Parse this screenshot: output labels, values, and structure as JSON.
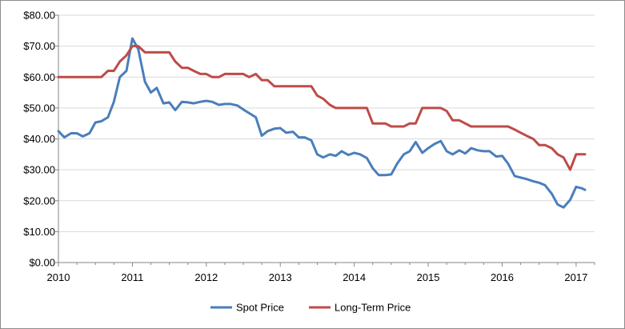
{
  "chart_data": {
    "type": "line",
    "title": "",
    "xlabel": "",
    "ylabel": "",
    "xlim": [
      2010,
      2017.25
    ],
    "ylim": [
      0,
      80
    ],
    "y_ticks": [
      "$0.00",
      "$10.00",
      "$20.00",
      "$30.00",
      "$40.00",
      "$50.00",
      "$60.00",
      "$70.00",
      "$80.00"
    ],
    "x_ticks": [
      "2010",
      "2011",
      "2012",
      "2013",
      "2014",
      "2015",
      "2016",
      "2017"
    ],
    "grid": {
      "horizontal": true,
      "vertical": false
    },
    "legend_position": "bottom",
    "series": [
      {
        "name": "Spot Price",
        "color": "#4a7ebb",
        "points": [
          [
            2010.0,
            42.5
          ],
          [
            2010.08,
            40.5
          ],
          [
            2010.17,
            41.8
          ],
          [
            2010.25,
            41.8
          ],
          [
            2010.33,
            40.8
          ],
          [
            2010.42,
            41.8
          ],
          [
            2010.5,
            45.3
          ],
          [
            2010.58,
            45.7
          ],
          [
            2010.67,
            47.0
          ],
          [
            2010.75,
            52.0
          ],
          [
            2010.83,
            60.0
          ],
          [
            2010.92,
            62.0
          ],
          [
            2011.0,
            72.5
          ],
          [
            2011.08,
            69.0
          ],
          [
            2011.17,
            58.5
          ],
          [
            2011.25,
            55.0
          ],
          [
            2011.33,
            56.5
          ],
          [
            2011.42,
            51.5
          ],
          [
            2011.5,
            51.8
          ],
          [
            2011.58,
            49.3
          ],
          [
            2011.67,
            52.0
          ],
          [
            2011.75,
            51.8
          ],
          [
            2011.83,
            51.5
          ],
          [
            2011.92,
            52.0
          ],
          [
            2012.0,
            52.3
          ],
          [
            2012.08,
            52.0
          ],
          [
            2012.17,
            51.0
          ],
          [
            2012.25,
            51.3
          ],
          [
            2012.33,
            51.3
          ],
          [
            2012.42,
            50.8
          ],
          [
            2012.5,
            49.5
          ],
          [
            2012.58,
            48.3
          ],
          [
            2012.67,
            47.0
          ],
          [
            2012.75,
            41.0
          ],
          [
            2012.83,
            42.5
          ],
          [
            2012.92,
            43.3
          ],
          [
            2013.0,
            43.5
          ],
          [
            2013.08,
            42.0
          ],
          [
            2013.17,
            42.3
          ],
          [
            2013.25,
            40.5
          ],
          [
            2013.33,
            40.5
          ],
          [
            2013.42,
            39.5
          ],
          [
            2013.5,
            35.0
          ],
          [
            2013.58,
            34.0
          ],
          [
            2013.67,
            35.0
          ],
          [
            2013.75,
            34.5
          ],
          [
            2013.83,
            36.0
          ],
          [
            2013.92,
            34.8
          ],
          [
            2014.0,
            35.5
          ],
          [
            2014.08,
            35.0
          ],
          [
            2014.17,
            33.8
          ],
          [
            2014.25,
            30.5
          ],
          [
            2014.33,
            28.3
          ],
          [
            2014.42,
            28.3
          ],
          [
            2014.5,
            28.5
          ],
          [
            2014.58,
            32.0
          ],
          [
            2014.67,
            35.0
          ],
          [
            2014.75,
            36.0
          ],
          [
            2014.83,
            39.0
          ],
          [
            2014.92,
            35.5
          ],
          [
            2015.0,
            37.0
          ],
          [
            2015.08,
            38.3
          ],
          [
            2015.17,
            39.3
          ],
          [
            2015.25,
            36.0
          ],
          [
            2015.33,
            35.0
          ],
          [
            2015.42,
            36.3
          ],
          [
            2015.5,
            35.3
          ],
          [
            2015.58,
            37.0
          ],
          [
            2015.67,
            36.3
          ],
          [
            2015.75,
            36.0
          ],
          [
            2015.83,
            36.0
          ],
          [
            2015.92,
            34.3
          ],
          [
            2016.0,
            34.5
          ],
          [
            2016.08,
            32.0
          ],
          [
            2016.17,
            28.0
          ],
          [
            2016.25,
            27.5
          ],
          [
            2016.33,
            27.0
          ],
          [
            2016.42,
            26.3
          ],
          [
            2016.5,
            25.8
          ],
          [
            2016.58,
            25.0
          ],
          [
            2016.67,
            22.3
          ],
          [
            2016.75,
            18.8
          ],
          [
            2016.83,
            17.8
          ],
          [
            2016.92,
            20.3
          ],
          [
            2017.0,
            24.5
          ],
          [
            2017.08,
            24.0
          ],
          [
            2017.12,
            23.5
          ]
        ]
      },
      {
        "name": "Long-Term Price",
        "color": "#be4b48",
        "points": [
          [
            2010.0,
            60.0
          ],
          [
            2010.58,
            60.0
          ],
          [
            2010.67,
            62.0
          ],
          [
            2010.75,
            62.0
          ],
          [
            2010.83,
            65.0
          ],
          [
            2010.92,
            67.0
          ],
          [
            2011.0,
            70.0
          ],
          [
            2011.08,
            70.0
          ],
          [
            2011.17,
            68.0
          ],
          [
            2011.5,
            68.0
          ],
          [
            2011.58,
            65.0
          ],
          [
            2011.67,
            63.0
          ],
          [
            2011.75,
            63.0
          ],
          [
            2011.83,
            62.0
          ],
          [
            2011.92,
            61.0
          ],
          [
            2012.0,
            61.0
          ],
          [
            2012.08,
            60.0
          ],
          [
            2012.17,
            60.0
          ],
          [
            2012.25,
            61.0
          ],
          [
            2012.5,
            61.0
          ],
          [
            2012.58,
            60.0
          ],
          [
            2012.67,
            61.0
          ],
          [
            2012.75,
            59.0
          ],
          [
            2012.83,
            59.0
          ],
          [
            2012.92,
            57.0
          ],
          [
            2013.42,
            57.0
          ],
          [
            2013.5,
            54.0
          ],
          [
            2013.58,
            53.0
          ],
          [
            2013.67,
            51.0
          ],
          [
            2013.75,
            50.0
          ],
          [
            2014.17,
            50.0
          ],
          [
            2014.25,
            45.0
          ],
          [
            2014.42,
            45.0
          ],
          [
            2014.5,
            44.0
          ],
          [
            2014.67,
            44.0
          ],
          [
            2014.75,
            45.0
          ],
          [
            2014.83,
            45.0
          ],
          [
            2014.92,
            50.0
          ],
          [
            2015.17,
            50.0
          ],
          [
            2015.25,
            49.0
          ],
          [
            2015.33,
            46.0
          ],
          [
            2015.42,
            46.0
          ],
          [
            2015.5,
            45.0
          ],
          [
            2015.58,
            44.0
          ],
          [
            2016.08,
            44.0
          ],
          [
            2016.17,
            43.0
          ],
          [
            2016.25,
            42.0
          ],
          [
            2016.33,
            41.0
          ],
          [
            2016.42,
            40.0
          ],
          [
            2016.5,
            38.0
          ],
          [
            2016.58,
            38.0
          ],
          [
            2016.67,
            37.0
          ],
          [
            2016.75,
            35.0
          ],
          [
            2016.83,
            34.0
          ],
          [
            2016.92,
            30.0
          ],
          [
            2017.0,
            35.0
          ],
          [
            2017.12,
            35.0
          ]
        ]
      }
    ]
  }
}
